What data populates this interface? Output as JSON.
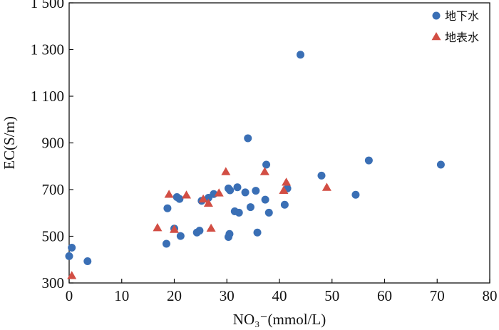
{
  "chart_data": {
    "type": "scatter",
    "title": "",
    "xlabel": "NO₃⁻(mmol/L)",
    "ylabel": "EC(S/m)",
    "xlim": [
      0,
      80
    ],
    "ylim": [
      300,
      1500
    ],
    "xticks": [
      0,
      10,
      20,
      30,
      40,
      50,
      60,
      70,
      80
    ],
    "yticks": [
      300,
      500,
      700,
      900,
      1100,
      1300,
      1500
    ],
    "xtick_labels": [
      "0",
      "10",
      "20",
      "30",
      "40",
      "50",
      "60",
      "70",
      "80"
    ],
    "ytick_labels": [
      "300",
      "500",
      "700",
      "900",
      "1 100",
      "1 300",
      "1 500"
    ],
    "grid": false,
    "legend_position": "top-right",
    "series": [
      {
        "name": "地下水",
        "marker": "circle",
        "color": "#3a6fb5",
        "points": [
          {
            "x": 0.0,
            "y": 415
          },
          {
            "x": 0.5,
            "y": 451
          },
          {
            "x": 3.5,
            "y": 393
          },
          {
            "x": 18.5,
            "y": 468
          },
          {
            "x": 18.7,
            "y": 620
          },
          {
            "x": 20.0,
            "y": 533
          },
          {
            "x": 20.5,
            "y": 668
          },
          {
            "x": 21.0,
            "y": 660
          },
          {
            "x": 21.2,
            "y": 501
          },
          {
            "x": 24.3,
            "y": 516
          },
          {
            "x": 24.8,
            "y": 524
          },
          {
            "x": 25.2,
            "y": 652
          },
          {
            "x": 26.5,
            "y": 665
          },
          {
            "x": 27.5,
            "y": 681
          },
          {
            "x": 30.3,
            "y": 705
          },
          {
            "x": 30.3,
            "y": 497
          },
          {
            "x": 30.5,
            "y": 510
          },
          {
            "x": 30.6,
            "y": 697
          },
          {
            "x": 31.5,
            "y": 607
          },
          {
            "x": 32.0,
            "y": 710
          },
          {
            "x": 32.3,
            "y": 601
          },
          {
            "x": 33.5,
            "y": 688
          },
          {
            "x": 34.0,
            "y": 920
          },
          {
            "x": 34.5,
            "y": 625
          },
          {
            "x": 35.5,
            "y": 695
          },
          {
            "x": 35.8,
            "y": 516
          },
          {
            "x": 37.3,
            "y": 657
          },
          {
            "x": 37.5,
            "y": 807
          },
          {
            "x": 38.0,
            "y": 601
          },
          {
            "x": 41.0,
            "y": 635
          },
          {
            "x": 41.5,
            "y": 705
          },
          {
            "x": 44.0,
            "y": 1278
          },
          {
            "x": 48.0,
            "y": 760
          },
          {
            "x": 54.5,
            "y": 678
          },
          {
            "x": 57.0,
            "y": 825
          },
          {
            "x": 70.7,
            "y": 807
          }
        ]
      },
      {
        "name": "地表水",
        "marker": "triangle",
        "color": "#d24e44",
        "points": [
          {
            "x": 0.5,
            "y": 330
          },
          {
            "x": 16.8,
            "y": 535
          },
          {
            "x": 19.0,
            "y": 678
          },
          {
            "x": 20.0,
            "y": 528
          },
          {
            "x": 22.3,
            "y": 675
          },
          {
            "x": 25.5,
            "y": 658
          },
          {
            "x": 26.5,
            "y": 640
          },
          {
            "x": 27.0,
            "y": 533
          },
          {
            "x": 28.5,
            "y": 684
          },
          {
            "x": 29.8,
            "y": 775
          },
          {
            "x": 37.2,
            "y": 775
          },
          {
            "x": 40.8,
            "y": 695
          },
          {
            "x": 41.3,
            "y": 730
          },
          {
            "x": 49.0,
            "y": 708
          }
        ]
      }
    ]
  },
  "colors": {
    "axis": "#111111",
    "groundwater": "#3a6fb5",
    "surfacewater": "#d24e44"
  }
}
